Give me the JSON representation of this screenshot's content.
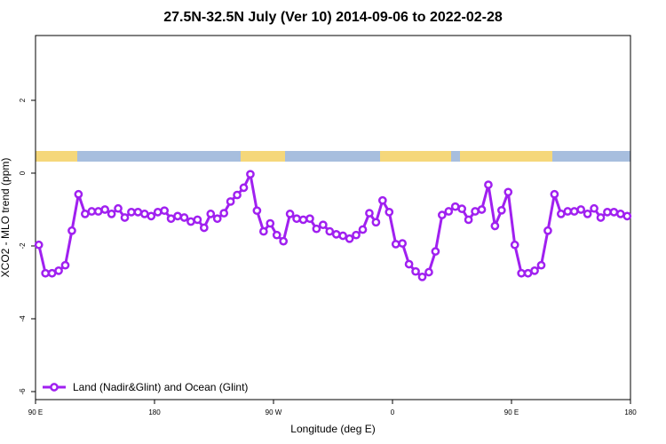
{
  "chart_data": {
    "type": "line",
    "title": "27.5N-32.5N July (Ver 10)   2014-09-06 to 2022-02-28",
    "xlabel": "Longitude (deg E)",
    "ylabel": "XCO2 - MLO trend (ppm)",
    "xlim": [
      90,
      540
    ],
    "ylim": [
      -6.22,
      3.78
    ],
    "xticks": [
      {
        "value": 90,
        "label": "90 E"
      },
      180,
      {
        "value": 270,
        "label": "90 W"
      },
      {
        "value": 360,
        "label": "0"
      },
      {
        "value": 450,
        "label": "90 E"
      },
      {
        "value": 540,
        "label": "180"
      }
    ],
    "yticks": [
      -6,
      -4,
      -2,
      0,
      2
    ],
    "x": [
      92.5,
      97.5,
      102.5,
      107.5,
      112.5,
      117.5,
      122.5,
      127.5,
      132.5,
      137.5,
      142.5,
      147.5,
      152.5,
      157.5,
      162.5,
      167.5,
      172.5,
      177.5,
      182.5,
      187.5,
      192.5,
      197.5,
      202.5,
      207.5,
      212.5,
      217.5,
      222.5,
      227.5,
      232.5,
      237.5,
      242.5,
      247.5,
      252.5,
      257.5,
      262.5,
      267.5,
      272.5,
      277.5,
      282.5,
      287.5,
      292.5,
      297.5,
      302.5,
      307.5,
      312.5,
      317.5,
      322.5,
      327.5,
      332.5,
      337.5,
      342.5,
      347.5,
      352.5,
      357.5,
      362.5,
      367.5,
      372.5,
      377.5,
      382.5,
      387.5,
      392.5,
      397.5,
      402.5,
      407.5,
      412.5,
      417.5,
      422.5,
      427.5,
      432.5,
      437.5,
      442.5,
      447.5,
      452.5,
      457.5,
      462.5,
      467.5,
      472.5,
      477.5,
      482.5,
      487.5,
      492.5,
      497.5,
      502.5,
      507.5,
      512.5,
      517.5,
      522.5,
      527.5,
      532.5,
      537.5
    ],
    "series": [
      {
        "name": "Land (Nadir&Glint) and Ocean (Glint)",
        "color": "#a020f0",
        "values": [
          -1.97,
          -2.75,
          -2.75,
          -2.68,
          -2.53,
          -1.58,
          -0.58,
          -1.12,
          -1.05,
          -1.05,
          -1.0,
          -1.12,
          -0.97,
          -1.22,
          -1.07,
          -1.07,
          -1.12,
          -1.18,
          -1.07,
          -1.03,
          -1.25,
          -1.18,
          -1.22,
          -1.33,
          -1.28,
          -1.5,
          -1.12,
          -1.25,
          -1.1,
          -0.78,
          -0.6,
          -0.4,
          -0.03,
          -1.03,
          -1.6,
          -1.38,
          -1.7,
          -1.87,
          -1.12,
          -1.25,
          -1.28,
          -1.25,
          -1.53,
          -1.42,
          -1.6,
          -1.68,
          -1.72,
          -1.8,
          -1.7,
          -1.55,
          -1.1,
          -1.35,
          -0.75,
          -1.07,
          -1.95,
          -1.93,
          -2.5,
          -2.7,
          -2.85,
          -2.72,
          -2.15,
          -1.15,
          -1.05,
          -0.92,
          -0.98,
          -1.28,
          -1.05,
          -1.0,
          -0.32,
          -1.45,
          -1.02,
          -0.52,
          -1.97,
          -2.75,
          -2.75,
          -2.68,
          -2.53,
          -1.58,
          -0.58,
          -1.12,
          -1.05,
          -1.05,
          -1.0,
          -1.12,
          -0.97,
          -1.22,
          -1.07,
          -1.07,
          -1.12,
          -1.18
        ]
      }
    ],
    "legend": "lower left"
  }
}
